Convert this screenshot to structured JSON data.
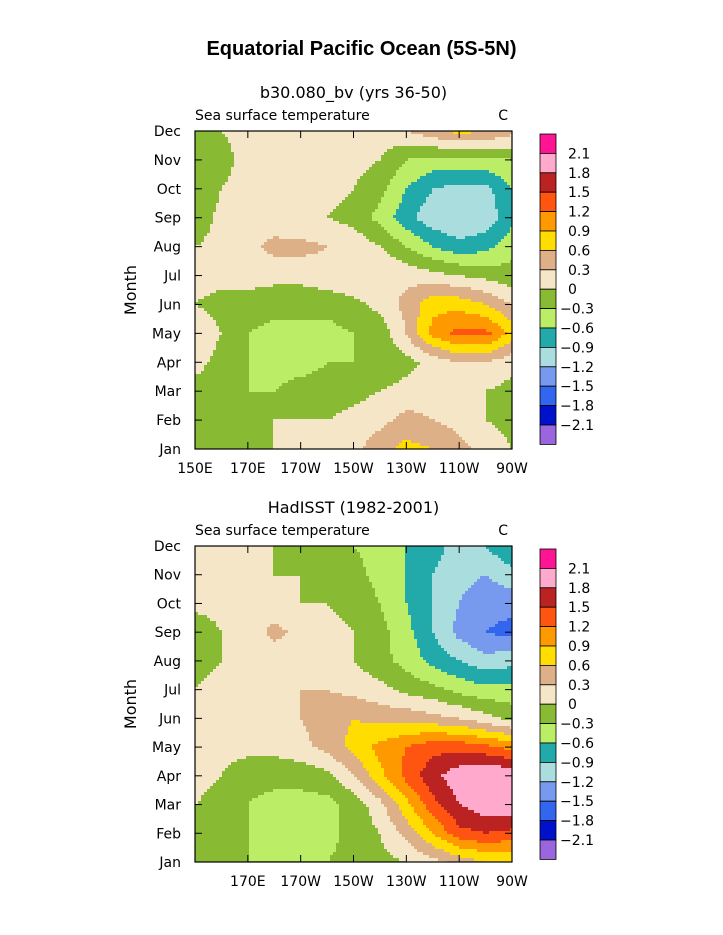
{
  "figure_title": "Equatorial Pacific Ocean (5S-5N)",
  "colors": {
    "levels": [
      "#9966dd",
      "#0011cc",
      "#3366ee",
      "#7799ee",
      "#aadddd",
      "#22aaaa",
      "#bbee66",
      "#88bb33",
      "#f5e6c8",
      "#ddb088",
      "#ffdd00",
      "#ff9900",
      "#ff5511",
      "#bb2222",
      "#ffaacc",
      "#ff1493"
    ],
    "level_labels": [
      "-2.1",
      "-1.8",
      "-1.5",
      "-1.2",
      "-0.9",
      "-0.6",
      "-0.3",
      "0",
      "0.3",
      "0.6",
      "0.9",
      "1.2",
      "1.5",
      "1.8",
      "2.1"
    ]
  },
  "chart_data": [
    {
      "type": "heatmap",
      "title": "b30.080_bv (yrs 36-50)",
      "subtitle_left": "Sea surface temperature",
      "subtitle_right": "C",
      "ylabel": "Month",
      "x_ticks": [
        "150E",
        "170E",
        "170W",
        "150W",
        "130W",
        "110W",
        "90W"
      ],
      "y_ticks": [
        "Jan",
        "Feb",
        "Mar",
        "Apr",
        "May",
        "Jun",
        "Jul",
        "Aug",
        "Sep",
        "Oct",
        "Nov",
        "Dec"
      ],
      "x_range": [
        "150E",
        "90W"
      ],
      "colorbar": {
        "levels": [
          "2.1",
          "1.8",
          "1.5",
          "1.2",
          "0.9",
          "0.6",
          "0.3",
          "0",
          "-0.3",
          "-0.6",
          "-0.9",
          "-1.2",
          "-1.5",
          "-1.8",
          "-2.1"
        ]
      },
      "longitudes": [
        "150E",
        "160E",
        "170E",
        "180",
        "170W",
        "160W",
        "150W",
        "140W",
        "130W",
        "120W",
        "110W",
        "100W",
        "90W"
      ],
      "months": [
        "Jan",
        "Feb",
        "Mar",
        "Apr",
        "May",
        "Jun",
        "Jul",
        "Aug",
        "Sep",
        "Oct",
        "Nov",
        "Dec"
      ],
      "z": [
        [
          -0.2,
          -0.2,
          -0.1,
          0.0,
          0.0,
          0.1,
          0.2,
          0.5,
          0.7,
          0.6,
          0.4,
          0.2,
          0.0
        ],
        [
          -0.3,
          -0.2,
          -0.1,
          0.0,
          0.0,
          0.0,
          0.1,
          0.2,
          0.4,
          0.3,
          0.2,
          0.0,
          -0.1
        ],
        [
          -0.1,
          -0.2,
          -0.3,
          -0.3,
          -0.2,
          -0.2,
          -0.1,
          0.0,
          0.1,
          0.2,
          0.2,
          0.0,
          -0.1
        ],
        [
          0.1,
          -0.1,
          -0.3,
          -0.4,
          -0.4,
          -0.3,
          -0.3,
          -0.2,
          -0.1,
          0.1,
          0.3,
          0.3,
          0.1
        ],
        [
          0.2,
          0.0,
          -0.3,
          -0.4,
          -0.4,
          -0.4,
          -0.3,
          -0.2,
          0.3,
          1.0,
          1.3,
          1.3,
          0.8
        ],
        [
          0.0,
          -0.1,
          -0.1,
          -0.2,
          -0.2,
          -0.2,
          -0.1,
          0.1,
          0.4,
          0.8,
          0.8,
          0.6,
          0.3
        ],
        [
          0.1,
          0.1,
          0.1,
          0.1,
          0.1,
          0.2,
          0.3,
          0.3,
          0.2,
          0.1,
          0.0,
          -0.1,
          -0.2
        ],
        [
          0.0,
          0.1,
          0.2,
          0.4,
          0.4,
          0.3,
          0.2,
          0.0,
          -0.3,
          -0.6,
          -0.8,
          -0.7,
          -0.4
        ],
        [
          -0.2,
          0.1,
          0.1,
          0.1,
          0.0,
          0.0,
          -0.1,
          -0.4,
          -0.8,
          -1.1,
          -1.2,
          -1.1,
          -0.7
        ],
        [
          -0.3,
          0.0,
          0.1,
          0.2,
          0.2,
          0.1,
          0.0,
          -0.2,
          -0.6,
          -0.9,
          -1.0,
          -1.0,
          -0.6
        ],
        [
          -0.2,
          -0.1,
          0.1,
          0.2,
          0.2,
          0.2,
          0.1,
          0.0,
          -0.3,
          -0.4,
          -0.4,
          -0.4,
          -0.3
        ],
        [
          -0.1,
          0.0,
          0.1,
          0.2,
          0.2,
          0.1,
          0.1,
          0.1,
          0.3,
          0.5,
          0.7,
          0.6,
          0.4
        ]
      ]
    },
    {
      "type": "heatmap",
      "title": "HadISST (1982-2001)",
      "subtitle_left": "Sea surface temperature",
      "subtitle_right": "C",
      "ylabel": "Month",
      "x_ticks": [
        "170E",
        "170W",
        "150W",
        "130W",
        "110W",
        "90W"
      ],
      "y_ticks": [
        "Jan",
        "Feb",
        "Mar",
        "Apr",
        "May",
        "Jun",
        "Jul",
        "Aug",
        "Sep",
        "Oct",
        "Nov",
        "Dec"
      ],
      "x_range": [
        "150E",
        "90W"
      ],
      "colorbar": {
        "levels": [
          "2.1",
          "1.8",
          "1.5",
          "1.2",
          "0.9",
          "0.6",
          "0.3",
          "0",
          "-0.3",
          "-0.6",
          "-0.9",
          "-1.2",
          "-1.5",
          "-1.8",
          "-2.1"
        ]
      },
      "longitudes": [
        "150E",
        "160E",
        "170E",
        "180",
        "170W",
        "160W",
        "150W",
        "140W",
        "130W",
        "120W",
        "110W",
        "100W",
        "90W"
      ],
      "months": [
        "Jan",
        "Feb",
        "Mar",
        "Apr",
        "May",
        "Jun",
        "Jul",
        "Aug",
        "Sep",
        "Oct",
        "Nov",
        "Dec"
      ],
      "z": [
        [
          0.0,
          -0.1,
          -0.3,
          -0.3,
          -0.3,
          -0.3,
          -0.2,
          -0.1,
          0.0,
          0.2,
          0.4,
          0.6,
          0.6
        ],
        [
          -0.1,
          -0.2,
          -0.3,
          -0.4,
          -0.4,
          -0.4,
          -0.2,
          0.0,
          0.4,
          0.9,
          1.4,
          1.5,
          1.4
        ],
        [
          0.0,
          -0.1,
          -0.3,
          -0.4,
          -0.4,
          -0.4,
          -0.2,
          0.2,
          0.8,
          1.4,
          1.8,
          2.0,
          2.1
        ],
        [
          0.1,
          0.0,
          -0.2,
          -0.2,
          -0.2,
          -0.1,
          0.3,
          0.8,
          1.3,
          1.7,
          2.0,
          2.1,
          2.1
        ],
        [
          0.1,
          0.1,
          0.1,
          0.1,
          0.2,
          0.4,
          0.7,
          1.0,
          1.2,
          1.4,
          1.4,
          1.3,
          1.1
        ],
        [
          0.2,
          0.2,
          0.2,
          0.2,
          0.3,
          0.5,
          0.6,
          0.5,
          0.5,
          0.4,
          0.3,
          0.1,
          -0.1
        ],
        [
          0.0,
          0.1,
          0.2,
          0.2,
          0.3,
          0.3,
          0.2,
          0.1,
          -0.1,
          -0.2,
          -0.4,
          -0.5,
          -0.5
        ],
        [
          -0.1,
          0.0,
          0.1,
          0.1,
          0.1,
          0.1,
          0.0,
          -0.2,
          -0.4,
          -0.7,
          -0.9,
          -1.1,
          -1.0
        ],
        [
          -0.2,
          0.0,
          0.1,
          0.4,
          0.2,
          0.1,
          0.0,
          -0.2,
          -0.5,
          -0.9,
          -1.3,
          -1.5,
          -1.6
        ],
        [
          0.1,
          0.1,
          0.1,
          0.1,
          0.0,
          0.0,
          -0.1,
          -0.3,
          -0.6,
          -0.9,
          -1.2,
          -1.4,
          -1.4
        ],
        [
          0.1,
          0.1,
          0.1,
          0.0,
          0.0,
          -0.1,
          -0.2,
          -0.4,
          -0.6,
          -0.9,
          -1.1,
          -1.2,
          -1.0
        ],
        [
          0.1,
          0.1,
          0.1,
          0.0,
          -0.1,
          -0.2,
          -0.3,
          -0.4,
          -0.6,
          -0.8,
          -1.0,
          -0.9,
          -0.6
        ]
      ]
    }
  ]
}
